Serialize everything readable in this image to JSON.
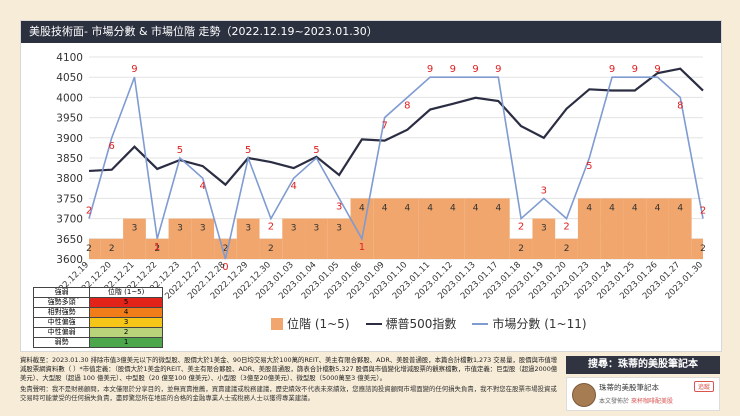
{
  "header": {
    "title": "美股技術面- 市場分數 & 市場位階 走勢（2022.12.19~2023.01.30）"
  },
  "legend": {
    "area_label": "位階 (1~5)",
    "sp_label": "標普500指數",
    "score_label": "市場分數 (1~11)"
  },
  "colors": {
    "area": "#f0a66c",
    "sp_line": "#2b2d42",
    "score_line": "#7f9bd1",
    "labels": "#e02020",
    "title_bg": "#2c3140"
  },
  "level_table": {
    "header": [
      "強弱",
      "位階 (1~5)"
    ],
    "rows": [
      {
        "label": "強勢多頭",
        "value": "5",
        "color": "#e2231a"
      },
      {
        "label": "相對強勢",
        "value": "4",
        "color": "#f07d1a"
      },
      {
        "label": "中性偏強",
        "value": "3",
        "color": "#f5c518"
      },
      {
        "label": "中性偏弱",
        "value": "2",
        "color": "#b9d37a"
      },
      {
        "label": "弱勢",
        "value": "1",
        "color": "#4ca64c"
      }
    ]
  },
  "disclaimer": {
    "source": "資料截至：2023.01.30 排除市值3億美元以下的微型股、股價大於1美金、90日均交易大於100萬的REIT、美主有限合夥股、ADR、美股普通股，本篇合計檔數1,273 交易量，股價與市值增減股票網資料數（ ）*市值定義：（股價大於1美金的REIT、美主有限合夥股、ADR、美股普通股，篩表合計檔數5,327 股價與市值變化增減股票的觀察檔數，市值定義：巨型股（超過2000億美元）、大型股（超過 100 億美元）、中型股（20 億至100 億美元）、小型股（3億至20億美元）、微型股（5000萬至3 億美元）。",
    "note": "免責聲明：我不是財務顧問，本文僅限於分享目的，並無買賣推薦，買賣建議或稅務建議，歷史績效不代表未來績效，您應諮詢投資顧問市場面變的任何損失負責，我不對您在股票市場投資或交易時可能蒙受的任何損失負責，盡即驚您所在地區的合格的金融專業人士或稅務人士以獲得專業建議。"
  },
  "search": {
    "label": "搜尋：珠蒂的美股筆記本"
  },
  "profile": {
    "name": "珠蒂的美股筆記本",
    "follow": "追蹤",
    "line_prefix": "本文發佈於",
    "line_link": "來杯咖啡配美股"
  },
  "chart_data": {
    "type": "line",
    "x": [
      "2022.12.19",
      "2022.12.20",
      "2022.12.21",
      "2022.12.22",
      "2022.12.23",
      "2022.12.27",
      "2022.12.28",
      "2022.12.29",
      "2022.12.30",
      "2023.01.03",
      "2023.01.04",
      "2023.01.05",
      "2023.01.06",
      "2023.01.09",
      "2023.01.10",
      "2023.01.11",
      "2023.01.12",
      "2023.01.13",
      "2023.01.17",
      "2023.01.18",
      "2023.01.19",
      "2023.01.20",
      "2023.01.23",
      "2023.01.24",
      "2023.01.25",
      "2023.01.26",
      "2023.01.27",
      "2023.01.30"
    ],
    "ylim": [
      3600,
      4100
    ],
    "yticks": [
      3600,
      3650,
      3700,
      3750,
      3800,
      3850,
      3900,
      3950,
      4000,
      4050,
      4100
    ],
    "series": [
      {
        "name": "位階 (1~5)",
        "kind": "area",
        "values": [
          2,
          2,
          3,
          2,
          3,
          3,
          2,
          3,
          2,
          3,
          3,
          3,
          4,
          4,
          4,
          4,
          4,
          4,
          4,
          2,
          3,
          2,
          4,
          4,
          4,
          4,
          4,
          2
        ]
      },
      {
        "name": "標普500指數",
        "kind": "line",
        "values": [
          3818,
          3821,
          3878,
          3823,
          3845,
          3830,
          3784,
          3850,
          3840,
          3825,
          3853,
          3808,
          3896,
          3893,
          3920,
          3970,
          3984,
          3999,
          3991,
          3929,
          3900,
          3972,
          4020,
          4017,
          4017,
          4060,
          4071,
          4017
        ]
      },
      {
        "name": "市場分數 (1~11)",
        "kind": "line",
        "values": [
          2,
          6,
          9,
          1,
          5,
          4,
          0,
          5,
          2,
          4,
          5,
          3,
          1,
          7,
          8,
          9,
          9,
          9,
          9,
          2,
          3,
          2,
          5,
          9,
          9,
          9,
          8,
          2
        ]
      }
    ]
  }
}
